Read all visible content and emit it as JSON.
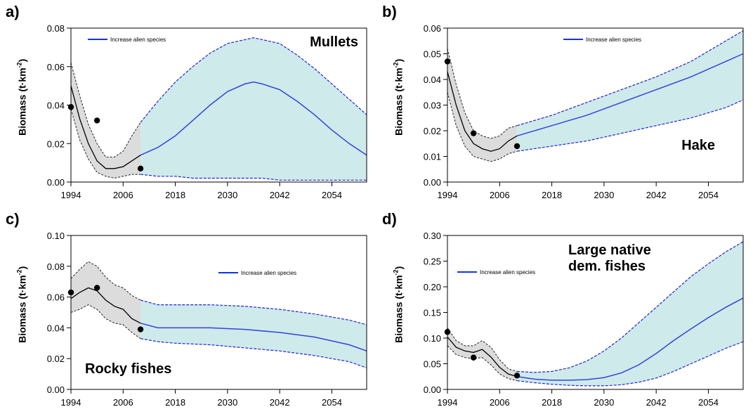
{
  "colors": {
    "band_fill": "#cfeaea",
    "band_edge": "#2222dd",
    "hist_fill": "#dcdcdc",
    "hist_edge": "#222222",
    "proj_line": "#3344dd",
    "hist_line": "#000000",
    "legend_line": "#1133ee"
  },
  "chart_data": [
    {
      "id": "a",
      "panel_label": "a)",
      "type": "line",
      "title": "Mullets",
      "ylabel": "Biomass (t·km-2)",
      "ylim": [
        0,
        0.08
      ],
      "yticks": [
        0,
        0.02,
        0.04,
        0.06,
        0.08
      ],
      "ytick_labels": [
        "0.00",
        "0.02",
        "0.04",
        "0.06",
        "0.08"
      ],
      "xlim": [
        1994,
        2062
      ],
      "xticks": [
        1994,
        2006,
        2018,
        2030,
        2042,
        2054
      ],
      "xtick_labels": [
        "1994",
        "2006",
        "2018",
        "2030",
        "2042",
        "2054"
      ],
      "legend": {
        "label": "Increase alien species",
        "placement": "top-left"
      },
      "title_placement": "top-right",
      "split_year": 2010,
      "series": [
        {
          "name": "Increase alien species",
          "x": [
            2010,
            2014,
            2018,
            2022,
            2026,
            2030,
            2034,
            2036,
            2038,
            2042,
            2046,
            2050,
            2054,
            2058,
            2062
          ],
          "mean": [
            0.014,
            0.018,
            0.024,
            0.032,
            0.04,
            0.047,
            0.051,
            0.052,
            0.051,
            0.048,
            0.042,
            0.035,
            0.027,
            0.02,
            0.014
          ],
          "upper": [
            0.031,
            0.042,
            0.052,
            0.06,
            0.067,
            0.072,
            0.074,
            0.075,
            0.074,
            0.072,
            0.066,
            0.059,
            0.051,
            0.043,
            0.035
          ],
          "lower": [
            0.004,
            0.003,
            0.003,
            0.002,
            0.002,
            0.002,
            0.002,
            0.002,
            0.002,
            0.001,
            0.001,
            0.001,
            0.001,
            0.001,
            0.001
          ]
        }
      ],
      "historical": {
        "x": [
          1994,
          1996,
          1998,
          2000,
          2002,
          2004,
          2006,
          2008,
          2010
        ],
        "mean": [
          0.05,
          0.033,
          0.02,
          0.011,
          0.007,
          0.007,
          0.008,
          0.011,
          0.014
        ],
        "upper": [
          0.062,
          0.045,
          0.03,
          0.02,
          0.013,
          0.013,
          0.016,
          0.024,
          0.031
        ],
        "lower": [
          0.038,
          0.022,
          0.012,
          0.005,
          0.003,
          0.002,
          0.003,
          0.004,
          0.004
        ]
      },
      "observed": {
        "x": [
          1994,
          2000,
          2010
        ],
        "y": [
          0.039,
          0.032,
          0.007
        ]
      }
    },
    {
      "id": "b",
      "panel_label": "b)",
      "type": "line",
      "title": "Hake",
      "ylabel": "Biomass (t·km-2)",
      "ylim": [
        0,
        0.06
      ],
      "yticks": [
        0,
        0.01,
        0.02,
        0.03,
        0.04,
        0.05,
        0.06
      ],
      "ytick_labels": [
        "0.00",
        "0.01",
        "0.02",
        "0.03",
        "0.04",
        "0.05",
        "0.06"
      ],
      "xlim": [
        1994,
        2062
      ],
      "xticks": [
        1994,
        2006,
        2018,
        2030,
        2042,
        2054
      ],
      "xtick_labels": [
        "1994",
        "2006",
        "2018",
        "2030",
        "2042",
        "2054"
      ],
      "legend": {
        "label": "Increase alien species",
        "placement": "top-center"
      },
      "title_placement": "bottom-right",
      "split_year": 2010,
      "series": [
        {
          "name": "Increase alien species",
          "x": [
            2010,
            2018,
            2026,
            2034,
            2042,
            2050,
            2058,
            2062
          ],
          "mean": [
            0.018,
            0.022,
            0.026,
            0.031,
            0.036,
            0.041,
            0.047,
            0.05
          ],
          "upper": [
            0.022,
            0.026,
            0.031,
            0.036,
            0.041,
            0.047,
            0.055,
            0.059
          ],
          "lower": [
            0.012,
            0.014,
            0.016,
            0.019,
            0.022,
            0.025,
            0.029,
            0.032
          ]
        }
      ],
      "historical": {
        "x": [
          1994,
          1996,
          1998,
          2000,
          2002,
          2004,
          2006,
          2008,
          2010
        ],
        "mean": [
          0.043,
          0.03,
          0.02,
          0.015,
          0.013,
          0.012,
          0.013,
          0.016,
          0.018
        ],
        "upper": [
          0.052,
          0.038,
          0.027,
          0.02,
          0.018,
          0.017,
          0.018,
          0.021,
          0.022
        ],
        "lower": [
          0.035,
          0.022,
          0.014,
          0.01,
          0.009,
          0.008,
          0.009,
          0.011,
          0.012
        ]
      },
      "observed": {
        "x": [
          1994,
          2000,
          2010
        ],
        "y": [
          0.047,
          0.019,
          0.014
        ]
      }
    },
    {
      "id": "c",
      "panel_label": "c)",
      "type": "line",
      "title": "Rocky fishes",
      "ylabel": "Biomass (t·km-2)",
      "ylim": [
        0,
        0.1
      ],
      "yticks": [
        0,
        0.02,
        0.04,
        0.06,
        0.08,
        0.1
      ],
      "ytick_labels": [
        "0.00",
        "0.02",
        "0.04",
        "0.06",
        "0.08",
        "0.10"
      ],
      "xlim": [
        1994,
        2062
      ],
      "xticks": [
        1994,
        2006,
        2018,
        2030,
        2042,
        2054
      ],
      "xtick_labels": [
        "1994",
        "2006",
        "2018",
        "2030",
        "2042",
        "2054"
      ],
      "legend": {
        "label": "Increase alien species",
        "placement": "top-right"
      },
      "title_placement": "bottom-left",
      "split_year": 2010,
      "series": [
        {
          "name": "Increase alien species",
          "x": [
            2010,
            2014,
            2018,
            2026,
            2034,
            2042,
            2050,
            2058,
            2062
          ],
          "mean": [
            0.043,
            0.04,
            0.04,
            0.04,
            0.039,
            0.037,
            0.034,
            0.029,
            0.025
          ],
          "upper": [
            0.058,
            0.055,
            0.055,
            0.055,
            0.054,
            0.052,
            0.049,
            0.045,
            0.042
          ],
          "lower": [
            0.033,
            0.031,
            0.03,
            0.029,
            0.027,
            0.025,
            0.022,
            0.018,
            0.014
          ]
        }
      ],
      "historical": {
        "x": [
          1994,
          1996,
          1998,
          2000,
          2002,
          2004,
          2006,
          2008,
          2010
        ],
        "mean": [
          0.059,
          0.063,
          0.066,
          0.064,
          0.058,
          0.054,
          0.052,
          0.046,
          0.043
        ],
        "upper": [
          0.072,
          0.078,
          0.083,
          0.08,
          0.073,
          0.068,
          0.066,
          0.061,
          0.058
        ],
        "lower": [
          0.05,
          0.052,
          0.055,
          0.052,
          0.046,
          0.043,
          0.042,
          0.037,
          0.033
        ]
      },
      "observed": {
        "x": [
          1994,
          2000,
          2010
        ],
        "y": [
          0.063,
          0.066,
          0.039
        ]
      }
    },
    {
      "id": "d",
      "panel_label": "d)",
      "type": "line",
      "title": "Large native dem. fishes",
      "title_lines": [
        "Large native",
        "dem. fishes"
      ],
      "ylabel": "Biomass (t·km-2)",
      "ylim": [
        0,
        0.3
      ],
      "yticks": [
        0,
        0.05,
        0.1,
        0.15,
        0.2,
        0.25,
        0.3
      ],
      "ytick_labels": [
        "0.00",
        "0.05",
        "0.10",
        "0.15",
        "0.20",
        "0.25",
        "0.30"
      ],
      "xlim": [
        1994,
        2062
      ],
      "xticks": [
        1994,
        2006,
        2018,
        2030,
        2042,
        2054
      ],
      "xtick_labels": [
        "1994",
        "2006",
        "2018",
        "2030",
        "2042",
        "2054"
      ],
      "legend": {
        "label": "Increase alien species",
        "placement": "top-left"
      },
      "title_placement": "top-center",
      "split_year": 2010,
      "series": [
        {
          "name": "Increase alien species",
          "x": [
            2010,
            2014,
            2018,
            2022,
            2026,
            2030,
            2034,
            2038,
            2042,
            2046,
            2050,
            2054,
            2058,
            2062
          ],
          "mean": [
            0.025,
            0.02,
            0.018,
            0.018,
            0.019,
            0.023,
            0.032,
            0.048,
            0.07,
            0.095,
            0.118,
            0.14,
            0.16,
            0.178
          ],
          "upper": [
            0.035,
            0.033,
            0.035,
            0.042,
            0.055,
            0.075,
            0.1,
            0.13,
            0.16,
            0.19,
            0.22,
            0.245,
            0.268,
            0.288
          ],
          "lower": [
            0.017,
            0.013,
            0.01,
            0.008,
            0.007,
            0.007,
            0.009,
            0.014,
            0.022,
            0.035,
            0.05,
            0.065,
            0.08,
            0.093
          ]
        }
      ],
      "historical": {
        "x": [
          1994,
          1996,
          1998,
          2000,
          2002,
          2004,
          2006,
          2008,
          2010
        ],
        "mean": [
          0.102,
          0.082,
          0.075,
          0.072,
          0.078,
          0.063,
          0.043,
          0.03,
          0.025
        ],
        "upper": [
          0.12,
          0.095,
          0.085,
          0.085,
          0.095,
          0.082,
          0.058,
          0.04,
          0.035
        ],
        "lower": [
          0.085,
          0.068,
          0.062,
          0.06,
          0.062,
          0.048,
          0.03,
          0.021,
          0.017
        ]
      },
      "observed": {
        "x": [
          1994,
          2000,
          2010
        ],
        "y": [
          0.112,
          0.062,
          0.027
        ]
      }
    }
  ]
}
